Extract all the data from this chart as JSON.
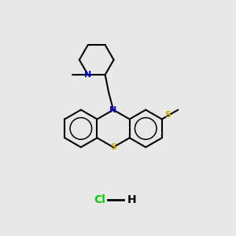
{
  "background_color": "#e8e8e8",
  "bond_color": "#000000",
  "N_color": "#0000cc",
  "S_color": "#ccaa00",
  "Cl_color": "#00cc00",
  "line_width": 1.5,
  "figsize": [
    3.0,
    3.0
  ],
  "dpi": 100,
  "xlim": [
    0,
    10
  ],
  "ylim": [
    0,
    10
  ]
}
